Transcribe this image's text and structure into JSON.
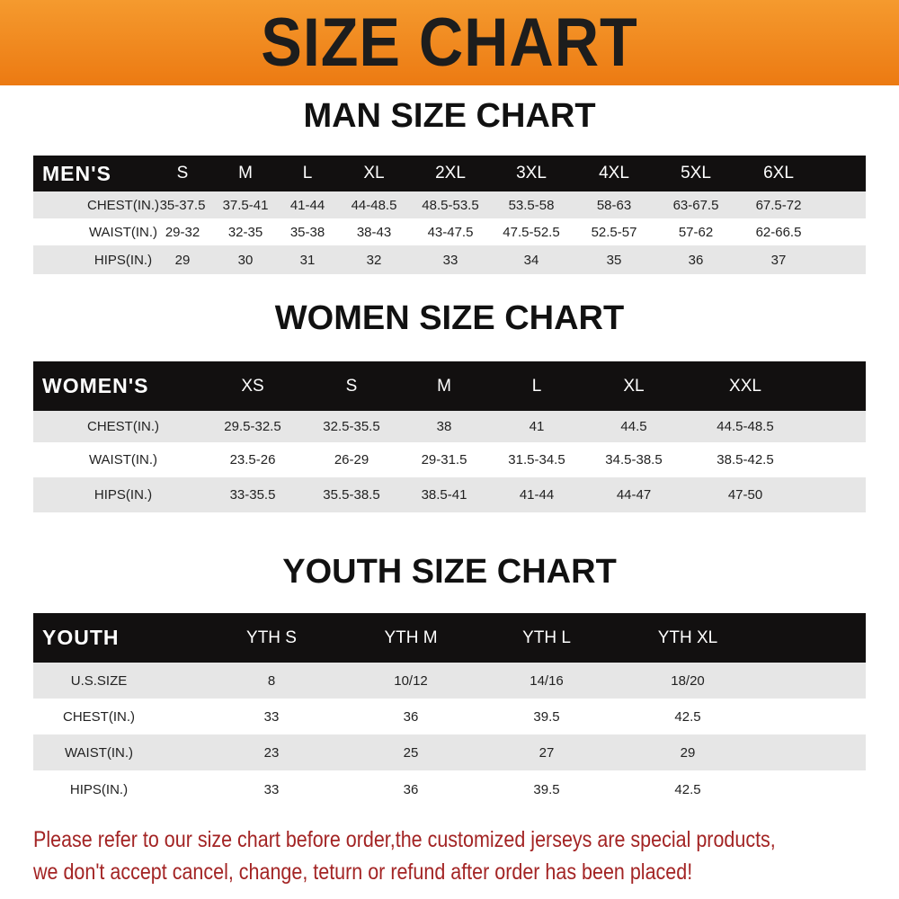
{
  "banner": {
    "title": "SIZE CHART",
    "color": "#ef8519"
  },
  "men": {
    "title": "MAN SIZE CHART",
    "header": [
      "MEN'S",
      "S",
      "M",
      "L",
      "XL",
      "2XL",
      "3XL",
      "4XL",
      "5XL",
      "6XL"
    ],
    "rows": [
      [
        "CHEST(IN.)",
        "35-37.5",
        "37.5-41",
        "41-44",
        "44-48.5",
        "48.5-53.5",
        "53.5-58",
        "58-63",
        "63-67.5",
        "67.5-72"
      ],
      [
        "WAIST(IN.)",
        "29-32",
        "32-35",
        "35-38",
        "38-43",
        "43-47.5",
        "47.5-52.5",
        "52.5-57",
        "57-62",
        "62-66.5"
      ],
      [
        "HIPS(IN.)",
        "29",
        "30",
        "31",
        "32",
        "33",
        "34",
        "35",
        "36",
        "37"
      ]
    ]
  },
  "women": {
    "title": "WOMEN SIZE CHART",
    "header": [
      "WOMEN'S",
      "XS",
      "S",
      "M",
      "L",
      "XL",
      "XXL"
    ],
    "rows": [
      [
        "CHEST(IN.)",
        "29.5-32.5",
        "32.5-35.5",
        "38",
        "41",
        "44.5",
        "44.5-48.5"
      ],
      [
        "WAIST(IN.)",
        "23.5-26",
        "26-29",
        "29-31.5",
        "31.5-34.5",
        "34.5-38.5",
        "38.5-42.5"
      ],
      [
        "HIPS(IN.)",
        "33-35.5",
        "35.5-38.5",
        "38.5-41",
        "41-44",
        "44-47",
        "47-50"
      ]
    ]
  },
  "youth": {
    "title": "YOUTH SIZE CHART",
    "header": [
      "YOUTH",
      "YTH S",
      "YTH M",
      "YTH L",
      "YTH XL"
    ],
    "rows": [
      [
        "U.S.SIZE",
        "8",
        "10/12",
        "14/16",
        "18/20"
      ],
      [
        "CHEST(IN.)",
        "33",
        "36",
        "39.5",
        "42.5"
      ],
      [
        "WAIST(IN.)",
        "23",
        "25",
        "27",
        "29"
      ],
      [
        "HIPS(IN.)",
        "33",
        "36",
        "39.5",
        "42.5"
      ]
    ]
  },
  "notice": {
    "line1": "Please refer to our size chart before order,the customized jerseys are special products,",
    "line2": "we don't accept cancel, change, teturn or refund after order has been placed!",
    "color": "#a32424"
  }
}
